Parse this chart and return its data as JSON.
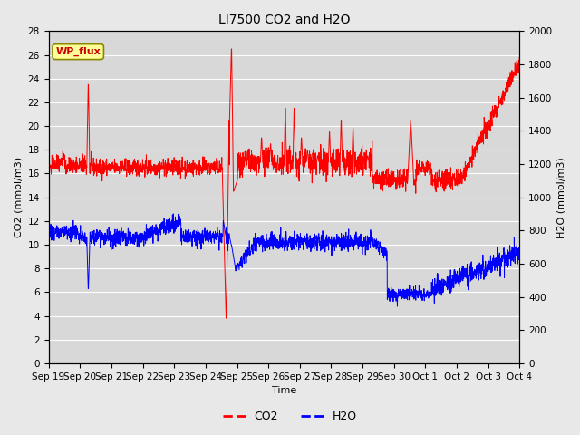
{
  "title": "LI7500 CO2 and H2O",
  "xlabel": "Time",
  "ylabel_left": "CO2 (mmol/m3)",
  "ylabel_right": "H2O (mmol/m3)",
  "ylim_left": [
    0,
    28
  ],
  "ylim_right": [
    0,
    2000
  ],
  "yticks_left": [
    0,
    2,
    4,
    6,
    8,
    10,
    12,
    14,
    16,
    18,
    20,
    22,
    24,
    26,
    28
  ],
  "yticks_right": [
    0,
    200,
    400,
    600,
    800,
    1000,
    1200,
    1400,
    1600,
    1800,
    2000
  ],
  "xtick_labels": [
    "Sep 19",
    "Sep 20",
    "Sep 21",
    "Sep 22",
    "Sep 23",
    "Sep 24",
    "Sep 25",
    "Sep 26",
    "Sep 27",
    "Sep 28",
    "Sep 29",
    "Sep 30",
    "Oct 1",
    "Oct 2",
    "Oct 3",
    "Oct 4"
  ],
  "co2_color": "#FF0000",
  "h2o_color": "#0000FF",
  "background_color": "#E8E8E8",
  "plot_background": "#D8D8D8",
  "grid_color": "#FFFFFF",
  "annotation_text": "WP_flux",
  "annotation_color": "#CC0000",
  "annotation_bg": "#FFFF99",
  "legend_co2": "CO2",
  "legend_h2o": "H2O",
  "title_fontsize": 10,
  "axis_fontsize": 8,
  "tick_fontsize": 7.5
}
